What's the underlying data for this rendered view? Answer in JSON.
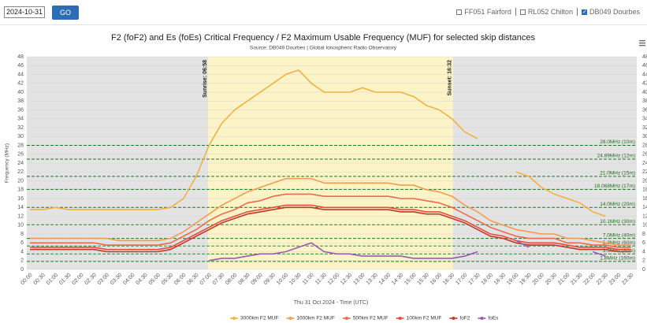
{
  "controls": {
    "date": "2024-10-31",
    "button": "GO",
    "stations": [
      {
        "label": "FF051 Fairford",
        "checked": false
      },
      {
        "label": "RL052 Chilton",
        "checked": false
      },
      {
        "label": "DB049 Dourbes",
        "checked": true
      }
    ]
  },
  "chart_data": {
    "type": "line",
    "title": "F2 (foF2) and Es (foEs) Critical Frequency / F2 Maximum Usable Frequency (MUF) for selected skip distances",
    "subtitle": "Source: DB049 Dourbes | Global Ionospheric Radio Observatory",
    "y_label": "Frequency (MHz)",
    "x_label": "Thu 31 Oct 2024 - Time (UTC)",
    "sunrise": "Sunrise: 06:58",
    "sunset": "Sunset: 16:32",
    "ylim": [
      0,
      48
    ],
    "yticks": [
      0,
      2,
      4,
      6,
      8,
      10,
      12,
      14,
      16,
      18,
      20,
      22,
      24,
      26,
      28,
      30,
      32,
      34,
      36,
      38,
      40,
      42,
      44,
      46,
      48
    ],
    "categories": [
      "00:00",
      "00:30",
      "01:00",
      "01:30",
      "02:00",
      "02:30",
      "03:00",
      "03:30",
      "04:00",
      "04:30",
      "05:00",
      "05:30",
      "06:00",
      "06:30",
      "07:00",
      "07:30",
      "08:00",
      "08:30",
      "09:00",
      "09:30",
      "10:00",
      "10:30",
      "11:00",
      "11:30",
      "12:00",
      "12:30",
      "13:00",
      "13:30",
      "14:00",
      "14:30",
      "15:00",
      "15:30",
      "16:00",
      "16:30",
      "17:00",
      "17:30",
      "18:00",
      "18:30",
      "19:00",
      "19:30",
      "20:00",
      "20:30",
      "21:00",
      "21:30",
      "22:00",
      "22:30",
      "23:00",
      "23:30"
    ],
    "reference_lines": [
      {
        "value": 28.0,
        "label": "28.0MHz (10m)"
      },
      {
        "value": 24.89,
        "label": "24.89MHz (12m)"
      },
      {
        "value": 21.0,
        "label": "21.0MHz (15m)"
      },
      {
        "value": 18.068,
        "label": "18.068MHz (17m)"
      },
      {
        "value": 14.0,
        "label": "14.0MHz (20m)"
      },
      {
        "value": 10.1,
        "label": "10.1MHz (30m)"
      },
      {
        "value": 7.0,
        "label": "7.0MHz (40m)"
      },
      {
        "value": 5.3,
        "label": "5.3MHz (60m)"
      },
      {
        "value": 3.5,
        "label": "3.5MHz (80m)"
      },
      {
        "value": 1.8,
        "label": "1.8MHz (160m)"
      }
    ],
    "series": [
      {
        "name": "3000km F2 MUF",
        "color": "#f5b041",
        "values": [
          13.5,
          13.5,
          14,
          13.5,
          13.5,
          13.5,
          13.5,
          13.5,
          13.5,
          13.5,
          13.5,
          14,
          16,
          21,
          28,
          33,
          36,
          38,
          40,
          42,
          44,
          45,
          42,
          40,
          40,
          40,
          41,
          40,
          40,
          40,
          39,
          37,
          36,
          34,
          31,
          29.5,
          null,
          null,
          22,
          21,
          18.5,
          17,
          16,
          15,
          13,
          12,
          null,
          null
        ]
      },
      {
        "name": "1000km F2 MUF",
        "color": "#f39c4d",
        "values": [
          7,
          7,
          7,
          7,
          7,
          7,
          7,
          6.5,
          6.5,
          6.5,
          6.5,
          7,
          8.5,
          10.5,
          12.5,
          14.5,
          16,
          17.5,
          18.5,
          19.5,
          20.5,
          20.5,
          20.5,
          19.5,
          19.5,
          19.5,
          19.5,
          19.5,
          19.5,
          19,
          19,
          18,
          17.5,
          16.5,
          14.5,
          13,
          11,
          10,
          9,
          8.5,
          8,
          8,
          7,
          7,
          6.5,
          6,
          5.5,
          5.5
        ]
      },
      {
        "name": "500km F2 MUF",
        "color": "#ec6b4a",
        "values": [
          6,
          6,
          6,
          6,
          6,
          6,
          5.5,
          5.5,
          5.5,
          5.5,
          5.5,
          6,
          7.5,
          9,
          11,
          12.5,
          13.5,
          15,
          15.5,
          16.5,
          17,
          17,
          17,
          16.5,
          16.5,
          16.5,
          16.5,
          16.5,
          16.5,
          16,
          16,
          15.5,
          15,
          14,
          12.5,
          11,
          9.5,
          8.5,
          7.5,
          7,
          7,
          7,
          6,
          6,
          5.5,
          5.5,
          5,
          5
        ]
      },
      {
        "name": "100km F2 MUF",
        "color": "#e74c3c",
        "values": [
          5,
          5,
          5,
          5,
          5,
          5,
          4.5,
          4.5,
          4.5,
          4.5,
          4.5,
          5,
          6.5,
          8,
          9.5,
          11,
          12,
          13,
          13.5,
          14,
          14.5,
          14.5,
          14.5,
          14,
          14,
          14,
          14,
          14,
          14,
          13.5,
          13.5,
          13,
          13,
          12,
          11,
          9.5,
          8,
          7.5,
          6.5,
          6,
          6,
          6,
          5.5,
          5,
          5,
          5,
          4.5,
          4.5
        ]
      },
      {
        "name": "foF2",
        "color": "#c0392b",
        "values": [
          4.5,
          4.5,
          4.5,
          4.5,
          4.5,
          4.5,
          4,
          4,
          4,
          4,
          4,
          4.5,
          6,
          7.5,
          9,
          10.5,
          11.5,
          12.5,
          13,
          13.5,
          14,
          14,
          14,
          13.5,
          13.5,
          13.5,
          13.5,
          13.5,
          13.5,
          13,
          13,
          12.5,
          12.5,
          11.5,
          10.5,
          9,
          7.5,
          7,
          6,
          5.5,
          5.5,
          5.5,
          5,
          4.5,
          4.5,
          4.5,
          4,
          4
        ]
      },
      {
        "name": "foEs",
        "color": "#9b59b6",
        "values": [
          null,
          null,
          null,
          null,
          null,
          null,
          null,
          null,
          null,
          null,
          null,
          null,
          null,
          null,
          2,
          2.5,
          2.5,
          3,
          3.5,
          3.5,
          4,
          5,
          6,
          4,
          3.5,
          3.5,
          3,
          3,
          3,
          3,
          2.5,
          2.5,
          2.5,
          2.5,
          3,
          4,
          null,
          null,
          6.5,
          5,
          null,
          null,
          null,
          null,
          4,
          3,
          null,
          null
        ]
      }
    ]
  }
}
